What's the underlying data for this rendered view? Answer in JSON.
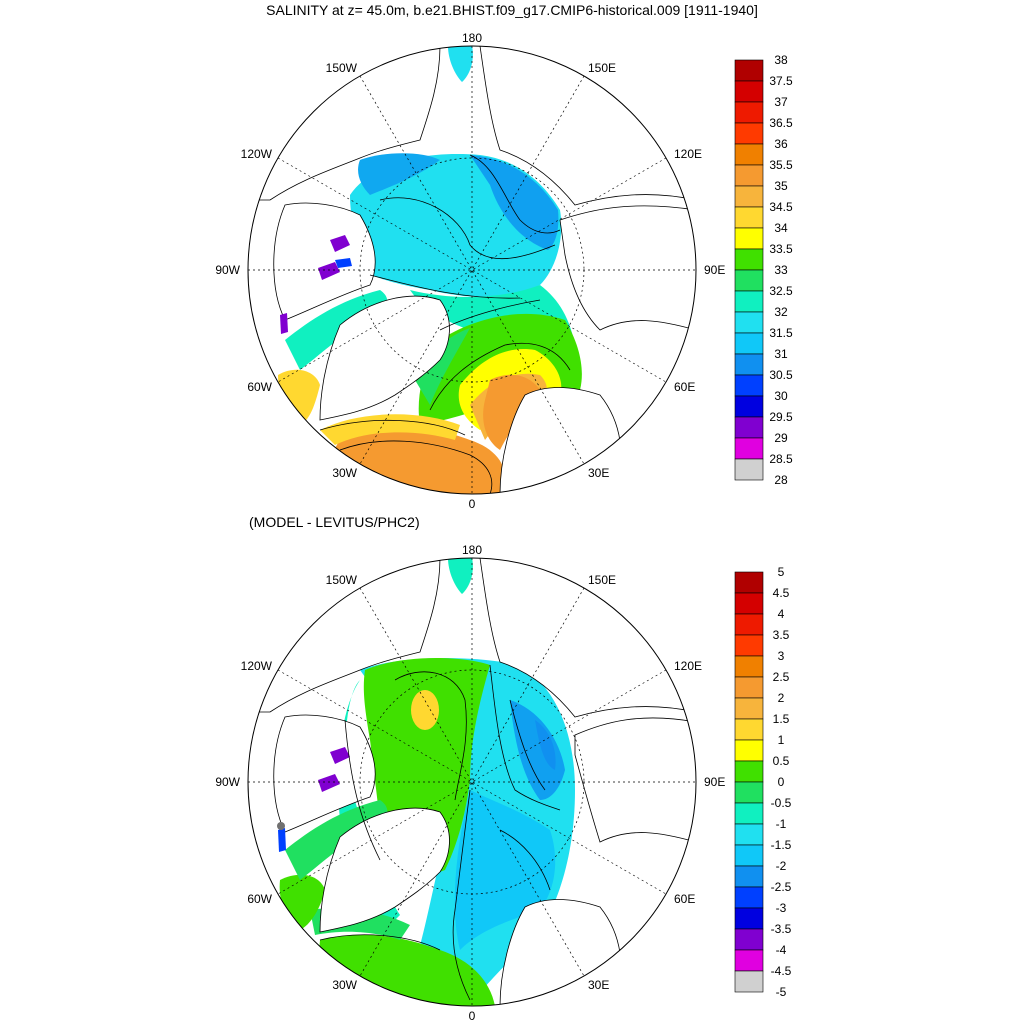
{
  "title": "SALINITY at z=  45.0m, b.e21.BHIST.f09_g17.CMIP6-historical.009 [1911-1940]",
  "subtitle": "(MODEL - LEVITUS/PHC2)",
  "lon_labels": {
    "top": "180",
    "bottom": "0",
    "left": "90W",
    "right": "90E",
    "ul1": "150W",
    "ul2": "120W",
    "ur1": "150E",
    "ur2": "120E",
    "ll1": "60W",
    "ll2": "30W",
    "lr1": "60E",
    "lr2": "30E"
  },
  "colorbar_top": {
    "labels": [
      "38",
      "37.5",
      "37",
      "36.5",
      "36",
      "35.5",
      "35",
      "34.5",
      "34",
      "33.5",
      "33",
      "32.5",
      "32",
      "31.5",
      "31",
      "30.5",
      "30",
      "29.5",
      "29",
      "28.5",
      "28"
    ]
  },
  "colorbar_bottom": {
    "labels": [
      "5",
      "4.5",
      "4",
      "3.5",
      "3",
      "2.5",
      "2",
      "1.5",
      "1",
      "0.5",
      "0",
      "-0.5",
      "-1",
      "-1.5",
      "-2",
      "-2.5",
      "-3",
      "-3.5",
      "-4",
      "-4.5",
      "-5"
    ]
  },
  "colors": [
    "#b00000",
    "#d40000",
    "#ee1a00",
    "#ff3a00",
    "#f08000",
    "#f59a30",
    "#f7b43c",
    "#ffd830",
    "#ffff00",
    "#40e000",
    "#20e060",
    "#10f0c0",
    "#20e0f0",
    "#10c8f8",
    "#1090f0",
    "#0040ff",
    "#0000e0",
    "#8000d0",
    "#e000e0",
    "#d0d0d0",
    "#707070"
  ]
}
